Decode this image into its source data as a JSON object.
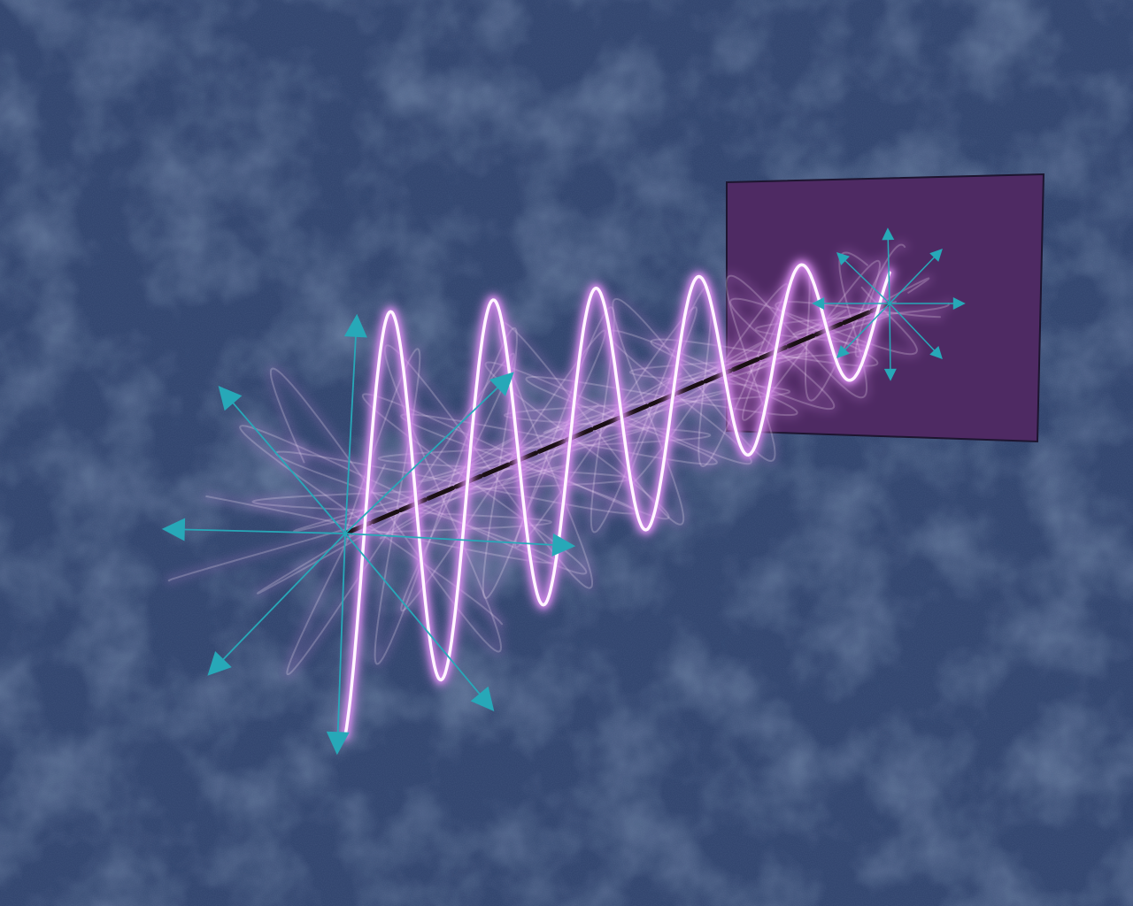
{
  "scene": {
    "description_kind": "illustration",
    "colors": {
      "background": "#33466f",
      "background_dark": "#2a3b63",
      "background_light": "#3b4f7a",
      "filter_panel": "#4e2a63",
      "filter_panel_edge": "#1d1530",
      "arrow": "#27a8b8",
      "wave_glow": "#d98cf0",
      "wave_core": "#fff4ff",
      "beam_axis": "#1a0f14"
    },
    "icons": {
      "source_arrows": "arrow-star-icon",
      "filtered_arrows": "arrow-star-icon"
    }
  }
}
